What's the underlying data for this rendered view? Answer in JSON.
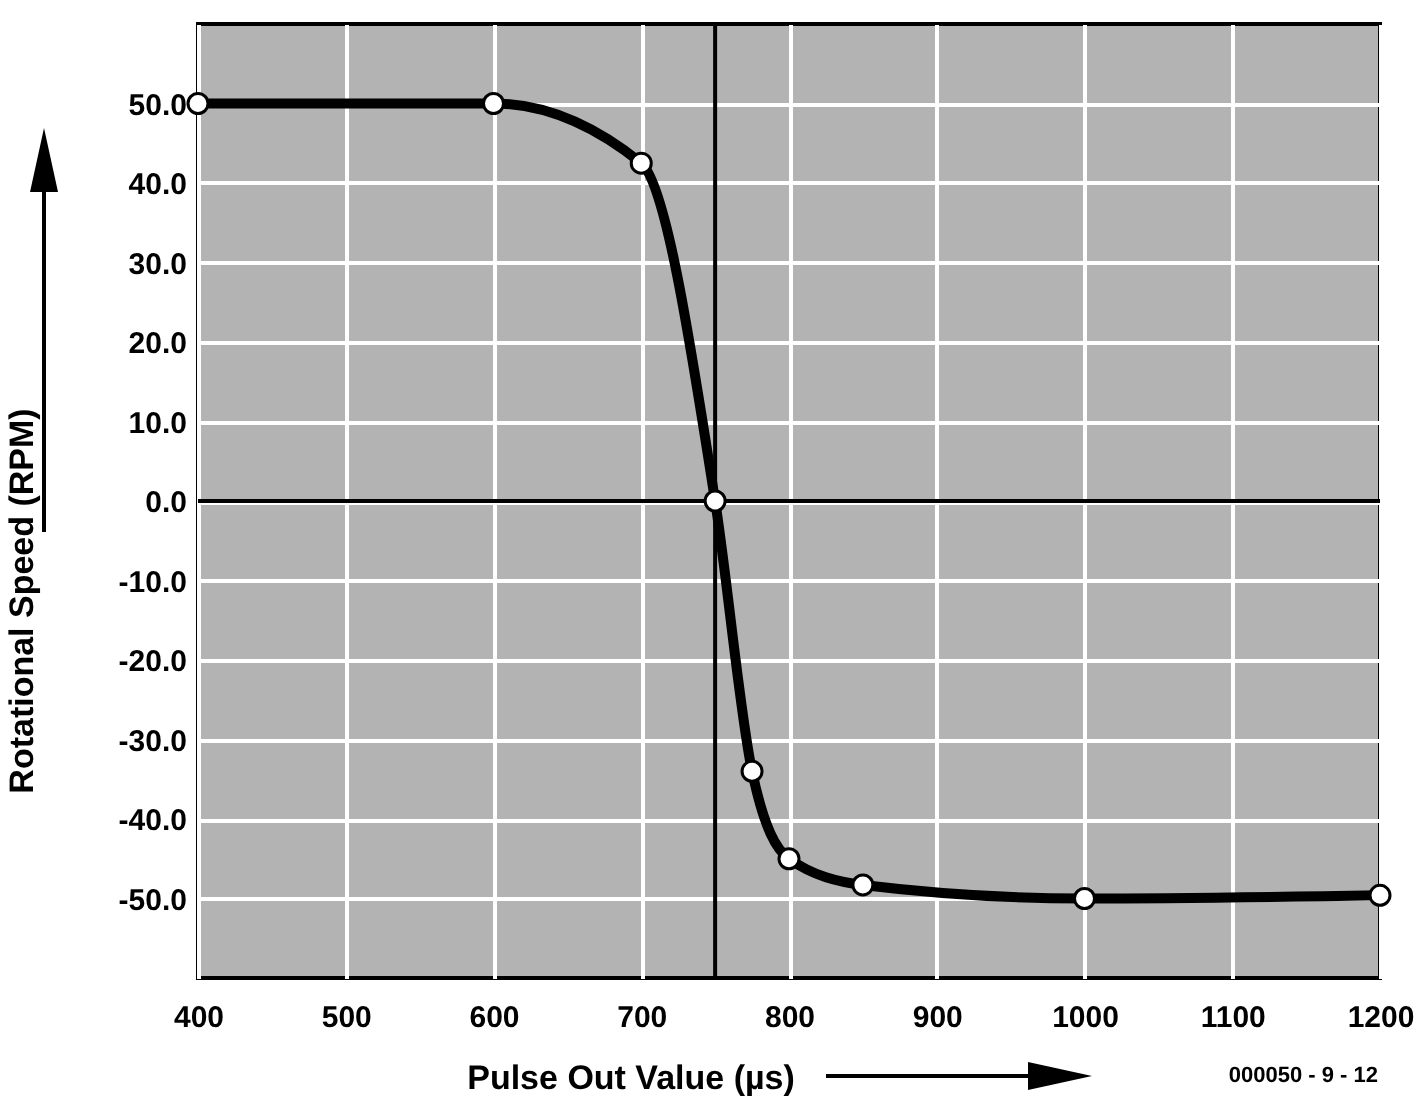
{
  "chart_data": {
    "type": "line",
    "xlabel": "Pulse Out Value  (µs)",
    "ylabel": "Rotational Speed (RPM)",
    "x": [
      400,
      600,
      700,
      750,
      775,
      800,
      850,
      1000,
      1200
    ],
    "series": [
      {
        "color": "#000000",
        "values": [
          50,
          50,
          42.5,
          0,
          -34,
          -45,
          -48.3,
          -50,
          -49.6
        ]
      }
    ],
    "xlim": [
      400,
      1200
    ],
    "xticks": [
      400,
      500,
      600,
      700,
      800,
      900,
      1000,
      1100,
      1200
    ],
    "ylim": [
      -60,
      60
    ],
    "yticks": [
      {
        "value": -50,
        "label": "-50.0"
      },
      {
        "value": -40,
        "label": "-40.0"
      },
      {
        "value": -30,
        "label": "-30.0"
      },
      {
        "value": -20,
        "label": "-20.0"
      },
      {
        "value": -10,
        "label": "-10.0"
      },
      {
        "value": 0,
        "label": "0.0"
      },
      {
        "value": 10,
        "label": "10.0"
      },
      {
        "value": 20,
        "label": "20.0"
      },
      {
        "value": 30,
        "label": "30.0"
      },
      {
        "value": 40,
        "label": "40.0"
      },
      {
        "value": 50,
        "label": "50.0"
      }
    ],
    "ref_lines": [
      {
        "axis": "x",
        "value": 750,
        "color": "#000000"
      },
      {
        "axis": "y",
        "value": 0,
        "color": "#000000"
      }
    ],
    "annotations": [
      "000050 - 9 - 12"
    ],
    "grid": true,
    "marker": "circle",
    "line_style": "solid"
  }
}
